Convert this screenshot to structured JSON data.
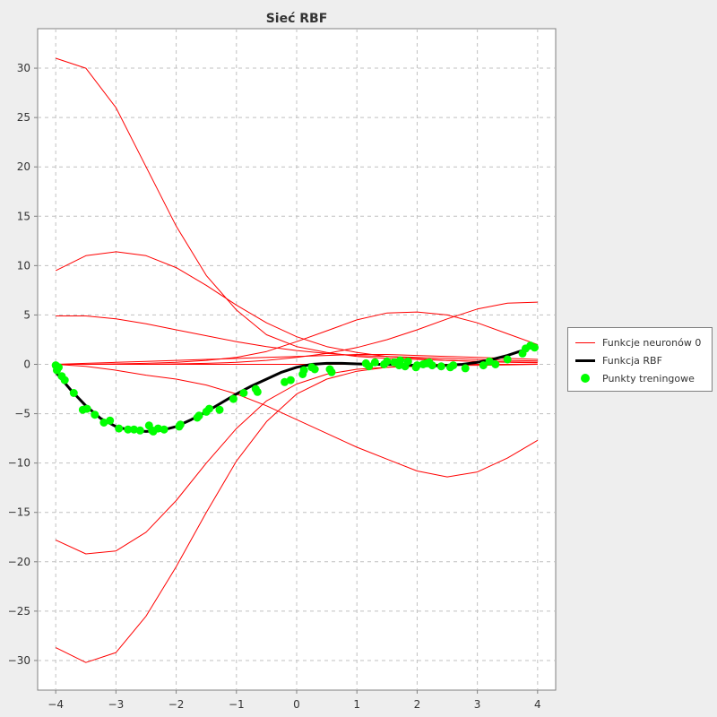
{
  "chart_data": {
    "type": "line",
    "title": "Sieć RBF",
    "xlabel": "",
    "ylabel": "",
    "xlim": [
      -4.3,
      4.3
    ],
    "ylim": [
      -33,
      34
    ],
    "xticks": [
      -4,
      -3,
      -2,
      -1,
      0,
      1,
      2,
      3,
      4
    ],
    "yticks": [
      30,
      25,
      20,
      15,
      10,
      5,
      0,
      -5,
      -10,
      -15,
      -20,
      -25,
      -30
    ],
    "grid": true,
    "legend_position": "right",
    "colors": {
      "neurons": "#ff0000",
      "rbf": "#000000",
      "points": "#00ff00"
    },
    "neuron_functions": [
      {
        "x": [
          -4,
          -3.5,
          -3,
          -2.5,
          -2,
          -1.5,
          -1,
          -0.5,
          0,
          0.5,
          1,
          1.5,
          2,
          2.5,
          3,
          3.5,
          4
        ],
        "y": [
          31,
          30,
          26,
          20,
          14,
          9,
          5.5,
          3,
          1.8,
          1.2,
          0.8,
          0.6,
          0.5,
          0.4,
          0.3,
          0.25,
          0.2
        ]
      },
      {
        "x": [
          -4,
          -3.5,
          -3,
          -2.5,
          -2,
          -1.5,
          -1,
          -0.5,
          0,
          0.5,
          1,
          1.5,
          2,
          2.5,
          3,
          3.5,
          4
        ],
        "y": [
          9.5,
          11,
          11.4,
          11,
          9.8,
          8,
          6,
          4.2,
          2.8,
          1.8,
          1.2,
          0.8,
          0.6,
          0.4,
          0.3,
          0.2,
          0.15
        ]
      },
      {
        "x": [
          -4,
          -3.5,
          -3,
          -2.5,
          -2,
          -1.5,
          -1,
          -0.5,
          0,
          0.5,
          1,
          1.5,
          2,
          2.5,
          3,
          3.5,
          4
        ],
        "y": [
          4.9,
          4.9,
          4.6,
          4.1,
          3.5,
          2.9,
          2.3,
          1.8,
          1.4,
          1.1,
          0.9,
          0.8,
          0.7,
          0.6,
          0.5,
          0.4,
          0.35
        ]
      },
      {
        "x": [
          -4,
          -3.5,
          -3,
          -2.5,
          -2,
          -1.5,
          -1,
          -0.5,
          0,
          0.5,
          1,
          1.5,
          2,
          2.5,
          3,
          3.5,
          4
        ],
        "y": [
          0,
          0,
          0.05,
          0.1,
          0.2,
          0.4,
          0.7,
          1.3,
          2.3,
          3.4,
          4.5,
          5.2,
          5.3,
          5,
          4.2,
          3.1,
          2
        ]
      },
      {
        "x": [
          -4,
          -3.5,
          -3,
          -2.5,
          -2,
          -1.5,
          -1,
          -0.5,
          0,
          0.5,
          1,
          1.5,
          2,
          2.5,
          3,
          3.5,
          4
        ],
        "y": [
          0,
          0,
          0,
          0,
          0.05,
          0.1,
          0.2,
          0.4,
          0.7,
          1.1,
          1.7,
          2.5,
          3.5,
          4.6,
          5.6,
          6.2,
          6.3
        ]
      },
      {
        "x": [
          -4,
          -3.5,
          -3,
          -2.5,
          -2,
          -1.5,
          -1,
          -0.5,
          0,
          0.5,
          1,
          1.5,
          2,
          2.5,
          3,
          3.5,
          4
        ],
        "y": [
          0,
          0.1,
          0.2,
          0.3,
          0.4,
          0.5,
          0.6,
          0.7,
          0.8,
          0.9,
          1,
          1,
          0.9,
          0.8,
          0.7,
          0.6,
          0.5
        ]
      },
      {
        "x": [
          -4,
          -3.5,
          -3,
          -2.5,
          -2,
          -1.5,
          -1,
          -0.5,
          0,
          0.5,
          1,
          1.5,
          2,
          2.5,
          3,
          3.5,
          4
        ],
        "y": [
          0,
          0,
          0,
          0,
          0,
          0,
          0,
          0,
          0,
          0,
          0,
          0,
          0,
          0,
          0,
          0,
          0
        ]
      },
      {
        "x": [
          -4,
          -3.5,
          -3,
          -2.5,
          -2,
          -1.5,
          -1,
          -0.5,
          0,
          0.5,
          1,
          1.5,
          2,
          2.5,
          3,
          3.5,
          4
        ],
        "y": [
          0,
          -0.2,
          -0.6,
          -1.1,
          -1.5,
          -2.1,
          -3,
          -4.2,
          -5.6,
          -7,
          -8.4,
          -9.6,
          -10.8,
          -11.4,
          -10.9,
          -9.5,
          -7.7
        ]
      },
      {
        "x": [
          -4,
          -3.5,
          -3,
          -2.5,
          -2,
          -1.5,
          -1,
          -0.5,
          0,
          0.5,
          1,
          1.5,
          2,
          2.5,
          3,
          3.5,
          4
        ],
        "y": [
          -17.8,
          -19.2,
          -18.9,
          -17,
          -13.8,
          -10,
          -6.5,
          -3.7,
          -2,
          -1,
          -0.5,
          -0.3,
          -0.2,
          -0.1,
          -0.1,
          -0.05,
          0
        ]
      },
      {
        "x": [
          -4,
          -3.5,
          -3,
          -2.5,
          -2,
          -1.5,
          -1,
          -0.5,
          0,
          0.5,
          1,
          1.5,
          2,
          2.5,
          3,
          3.5,
          4
        ],
        "y": [
          -28.7,
          -30.2,
          -29.2,
          -25.5,
          -20.5,
          -15,
          -9.8,
          -5.8,
          -3,
          -1.5,
          -0.7,
          -0.3,
          -0.1,
          -0.05,
          0,
          0,
          0
        ]
      }
    ],
    "series": [
      {
        "name": "Funkcja RBF",
        "type": "line",
        "x": [
          -4,
          -3.75,
          -3.5,
          -3.25,
          -3,
          -2.75,
          -2.5,
          -2.25,
          -2,
          -1.75,
          -1.5,
          -1.25,
          -1,
          -0.75,
          -0.5,
          -0.25,
          0,
          0.25,
          0.5,
          0.75,
          1,
          1.25,
          1.5,
          1.75,
          2,
          2.25,
          2.5,
          2.75,
          3,
          3.25,
          3.5,
          3.75,
          4
        ],
        "y": [
          -0.8,
          -2.6,
          -4.2,
          -5.5,
          -6.3,
          -6.7,
          -6.8,
          -6.7,
          -6.3,
          -5.6,
          -4.8,
          -3.9,
          -3.0,
          -2.2,
          -1.5,
          -0.8,
          -0.3,
          0,
          0.1,
          0.1,
          0.05,
          0,
          0,
          -0.05,
          -0.1,
          -0.15,
          -0.1,
          0,
          0.2,
          0.5,
          0.9,
          1.4,
          1.9
        ]
      },
      {
        "name": "Punkty treningowe",
        "type": "scatter",
        "x": [
          -4,
          -3.98,
          -3.95,
          -3.9,
          -3.85,
          -3.7,
          -3.55,
          -3.48,
          -3.35,
          -3.2,
          -3.1,
          -2.95,
          -2.8,
          -2.7,
          -2.6,
          -2.45,
          -2.4,
          -2.38,
          -2.3,
          -2.2,
          -1.95,
          -1.93,
          -1.65,
          -1.62,
          -1.5,
          -1.45,
          -1.28,
          -1.05,
          -0.88,
          -0.68,
          -0.65,
          -0.2,
          -0.1,
          0.1,
          0.12,
          0.25,
          0.3,
          0.55,
          0.58,
          1.15,
          1.2,
          1.3,
          1.45,
          1.5,
          1.62,
          1.7,
          1.72,
          1.8,
          1.85,
          1.98,
          2.0,
          2.1,
          2.15,
          2.2,
          2.25,
          2.4,
          2.55,
          2.6,
          2.8,
          3.1,
          3.2,
          3.3,
          3.5,
          3.75,
          3.8,
          3.88,
          3.95
        ],
        "y": [
          -0.1,
          -0.6,
          -0.3,
          -1.2,
          -1.6,
          -2.9,
          -4.6,
          -4.5,
          -5.1,
          -5.9,
          -5.7,
          -6.5,
          -6.6,
          -6.6,
          -6.7,
          -6.2,
          -6.7,
          -6.8,
          -6.5,
          -6.6,
          -6.3,
          -6.1,
          -5.4,
          -5.2,
          -4.8,
          -4.5,
          -4.6,
          -3.5,
          -2.9,
          -2.5,
          -2.8,
          -1.8,
          -1.6,
          -1.0,
          -0.6,
          -0.3,
          -0.5,
          -0.5,
          -0.8,
          0.1,
          -0.2,
          0.2,
          0,
          0.3,
          0.2,
          -0.1,
          0.4,
          -0.2,
          0.3,
          -0.3,
          -0.1,
          0,
          0.1,
          0.2,
          -0.1,
          -0.2,
          -0.3,
          -0.1,
          -0.4,
          -0.1,
          0.3,
          0,
          0.5,
          1.1,
          1.6,
          1.9,
          1.7
        ]
      }
    ],
    "legend": [
      {
        "label": "Funkcje neuronów 0",
        "kind": "thin-line"
      },
      {
        "label": "Funkcja RBF",
        "kind": "thick-line"
      },
      {
        "label": "Punkty treningowe",
        "kind": "dot"
      }
    ]
  }
}
